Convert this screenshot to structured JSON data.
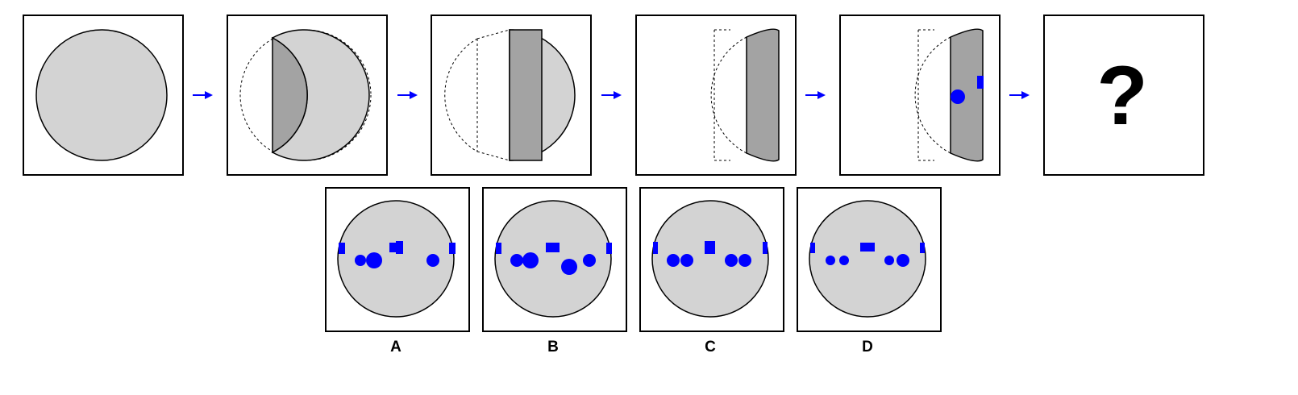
{
  "puzzle": {
    "sequence": [
      {
        "step": 1,
        "content": "full-circle"
      },
      {
        "step": 2,
        "content": "fold-left-segment"
      },
      {
        "step": 3,
        "content": "fold-right-segment"
      },
      {
        "step": 4,
        "content": "fold-again"
      },
      {
        "step": 5,
        "content": "punched-holes"
      },
      {
        "step": 6,
        "content": "question"
      }
    ],
    "question_mark": "?",
    "options": [
      {
        "label": "A"
      },
      {
        "label": "B"
      },
      {
        "label": "C"
      },
      {
        "label": "D"
      }
    ]
  },
  "colors": {
    "paper": "#d3d3d3",
    "fold": "#a3a3a3",
    "punch": "#0000ff",
    "arrow": "#0000ff",
    "border": "#000000"
  },
  "icons": {
    "arrow": "right-arrow-icon",
    "hole_round": "circle-hole-icon",
    "hole_square": "square-hole-icon"
  }
}
